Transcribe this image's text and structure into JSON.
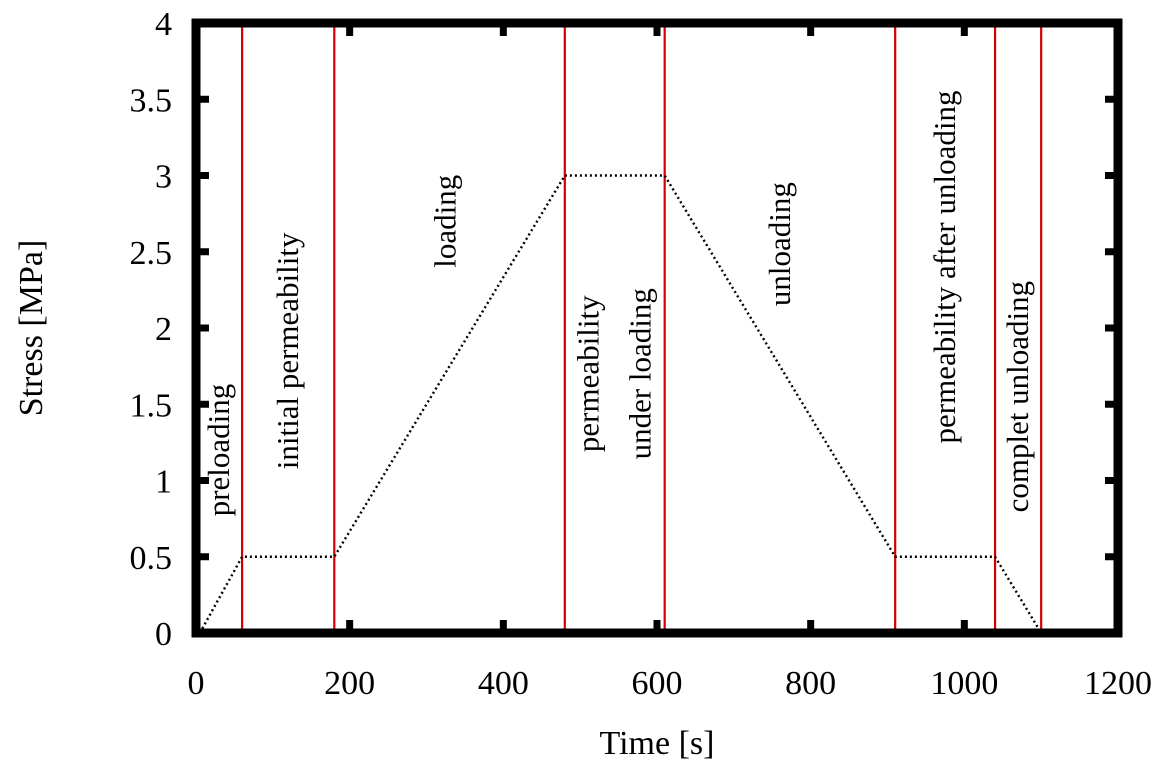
{
  "chart_data": {
    "type": "line",
    "title": "",
    "xlabel": "Time [s]",
    "ylabel": "Stress [MPa]",
    "xlim": [
      0,
      1200
    ],
    "ylim": [
      0,
      4
    ],
    "x_ticks": [
      "0",
      "200",
      "400",
      "600",
      "800",
      "1000",
      "1200"
    ],
    "y_ticks": [
      "0",
      "0.5",
      "1",
      "1.5",
      "2",
      "2.5",
      "3",
      "3.5",
      "4"
    ],
    "grid": false,
    "legend": "none",
    "series": [
      {
        "line_style": "dotted",
        "color": "#000000",
        "x": [
          5,
          60,
          180,
          480,
          610,
          910,
          1040,
          1100
        ],
        "y": [
          0,
          0.5,
          0.5,
          3,
          3,
          0.5,
          0.5,
          0
        ]
      }
    ],
    "phase_boundaries": {
      "color": "#d40000",
      "x": [
        60,
        180,
        480,
        610,
        910,
        1040,
        1100
      ]
    },
    "phase_labels": [
      {
        "lines": [
          "preloading"
        ],
        "x": 30,
        "y": 1.2
      },
      {
        "lines": [
          "initial permeability"
        ],
        "x": 120,
        "y": 1.85
      },
      {
        "lines": [
          "loading"
        ],
        "x": 325,
        "y": 2.7
      },
      {
        "lines": [
          "permeability",
          "under loading"
        ],
        "x": 545,
        "y": 1.7
      },
      {
        "lines": [
          "unloading"
        ],
        "x": 760,
        "y": 2.55
      },
      {
        "lines": [
          "permeability after unloading"
        ],
        "x": 975,
        "y": 2.4
      },
      {
        "lines": [
          "complet unloading"
        ],
        "x": 1070,
        "y": 1.55
      }
    ]
  }
}
